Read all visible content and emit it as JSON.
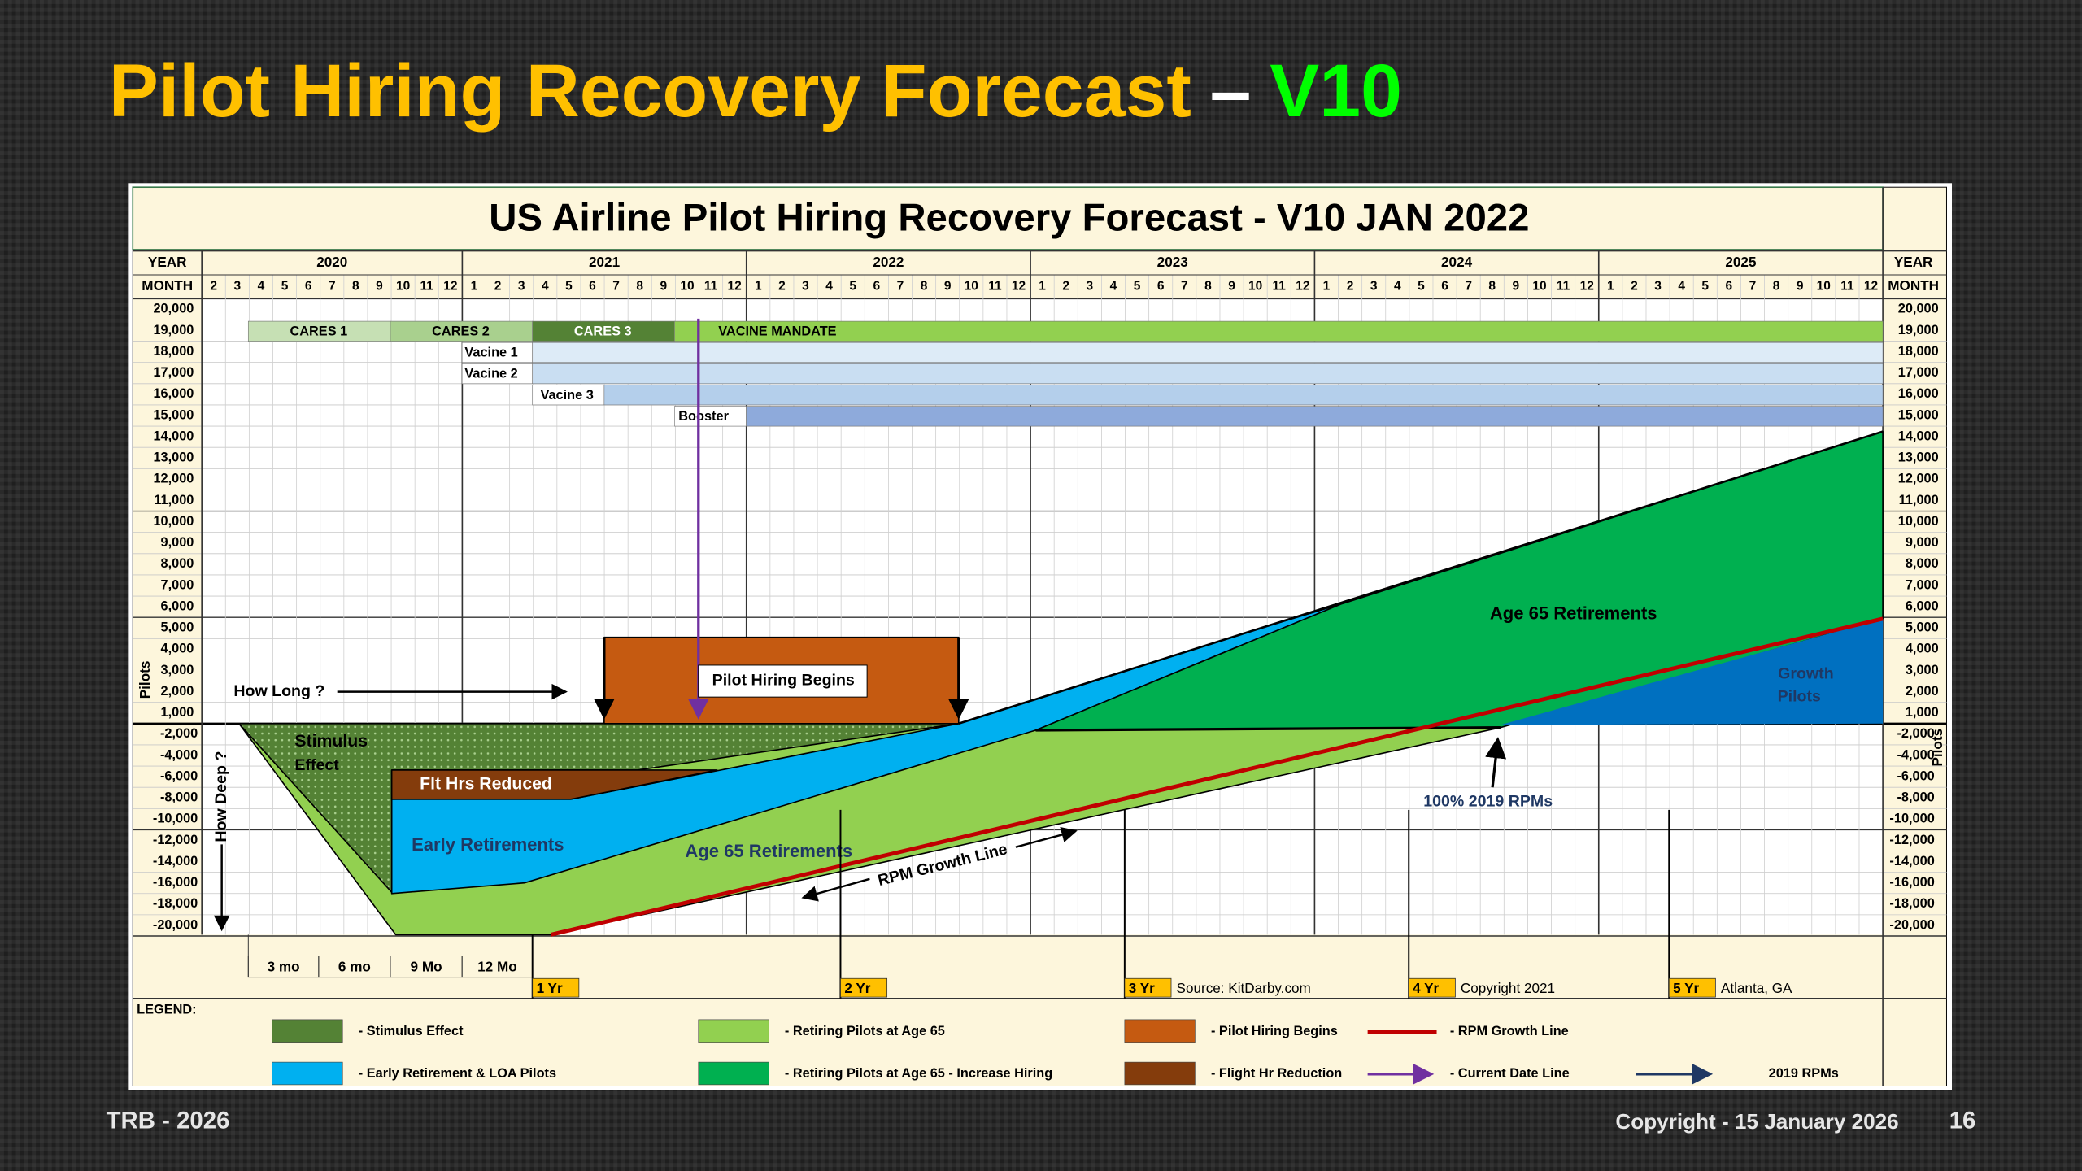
{
  "slide": {
    "title": "Pilot Hiring Recovery Forecast",
    "title_dash": "–",
    "title_version": "V10",
    "footer_left": "TRB - 2026",
    "footer_right": "Copyright - 15 January 2026",
    "page_number": "16"
  },
  "chart": {
    "title": "US Airline Pilot Hiring Recovery Forecast - V10 JAN 2022",
    "year_header": "YEAR",
    "month_header": "MONTH",
    "axis_label": "Pilots",
    "years": [
      {
        "label": "2020",
        "months": [
          2,
          3,
          4,
          5,
          6,
          7,
          8,
          9,
          10,
          11,
          12
        ]
      },
      {
        "label": "2021",
        "months": [
          1,
          2,
          3,
          4,
          5,
          6,
          7,
          8,
          9,
          10,
          11,
          12
        ]
      },
      {
        "label": "2022",
        "months": [
          1,
          2,
          3,
          4,
          5,
          6,
          7,
          8,
          9,
          10,
          11,
          12
        ]
      },
      {
        "label": "2023",
        "months": [
          1,
          2,
          3,
          4,
          5,
          6,
          7,
          8,
          9,
          10,
          11,
          12
        ]
      },
      {
        "label": "2024",
        "months": [
          1,
          2,
          3,
          4,
          5,
          6,
          7,
          8,
          9,
          10,
          11,
          12
        ]
      },
      {
        "label": "2025",
        "months": [
          1,
          2,
          3,
          4,
          5,
          6,
          7,
          8,
          9,
          10,
          11,
          12
        ]
      }
    ],
    "y_labels_upper": [
      "20,000",
      "19,000",
      "18,000",
      "17,000",
      "16,000",
      "15,000",
      "14,000",
      "13,000",
      "12,000",
      "11,000",
      "10,000",
      "9,000",
      "8,000",
      "7,000",
      "6,000",
      "5,000",
      "4,000",
      "3,000",
      "2,000",
      "1,000"
    ],
    "y_labels_lower": [
      "-2,000",
      "-4,000",
      "-6,000",
      "-8,000",
      "-10,000",
      "-12,000",
      "-14,000",
      "-16,000",
      "-18,000",
      "-20,000"
    ],
    "programs": [
      "CARES 1",
      "CARES 2",
      "CARES 3",
      "VACINE MANDATE",
      "Vacine 1",
      "Vacine 2",
      "Vacine 3",
      "Booster"
    ],
    "annotations": {
      "how_long": "How Long ?",
      "how_deep": "How Deep ?",
      "pilot_hiring_begins": "Pilot Hiring Begins",
      "stimulus_1": "Stimulus",
      "stimulus_2": "Effect",
      "flt_hrs_reduced": "Flt Hrs Reduced",
      "early_retirements": "Early Retirements",
      "age65_lower": "Age 65 Retirements",
      "age65_upper": "Age 65 Retirements",
      "growth_1": "Growth",
      "growth_2": "Pilots",
      "rpm_growth_line": "RPM Growth Line",
      "rpms_2019": "100% 2019 RPMs"
    },
    "durations": [
      "3 mo",
      "6 mo",
      "9 Mo",
      "12 Mo"
    ],
    "milestones": [
      {
        "label": "1 Yr"
      },
      {
        "label": "2 Yr"
      },
      {
        "label": "3 Yr",
        "note": "Source: KitDarby.com"
      },
      {
        "label": "4 Yr",
        "note": "Copyright 2021"
      },
      {
        "label": "5 Yr",
        "note": "Atlanta, GA"
      }
    ],
    "legend_title": "LEGEND:",
    "legend": [
      "-  Stimulus Effect",
      "-  Retiring Pilots at Age 65",
      "-  Pilot Hiring Begins",
      "-  RPM Growth Line",
      "-  Early Retirement & LOA Pilots",
      "-  Retiring Pilots  at Age 65 - Increase Hiring",
      "-  Flight Hr Reduction",
      "-  Current Date Line",
      "2019 RPMs"
    ]
  }
}
